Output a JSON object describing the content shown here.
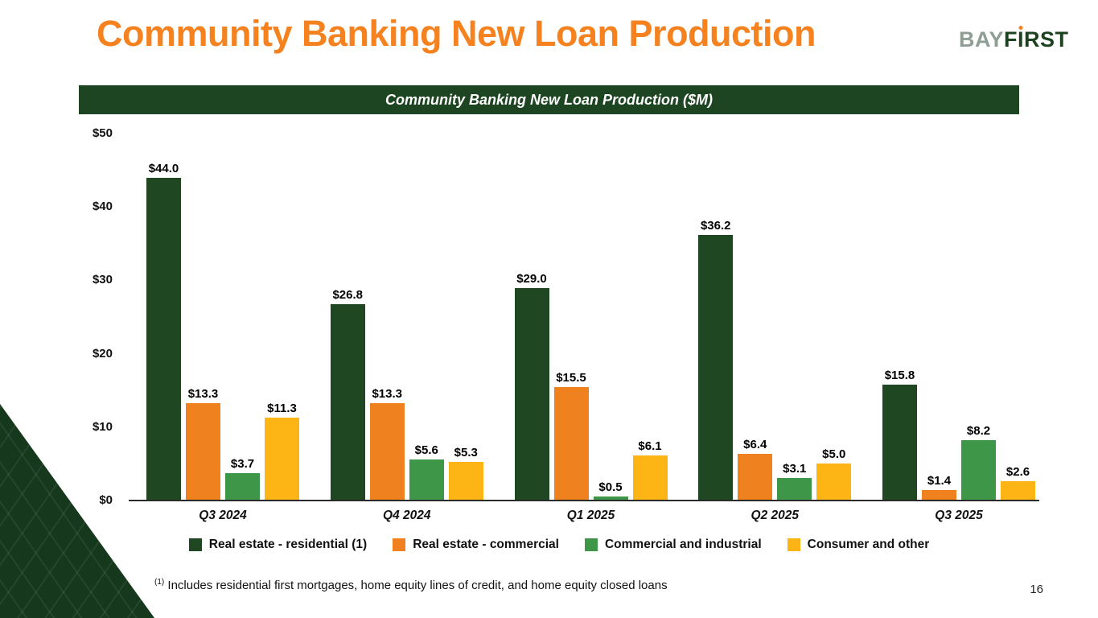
{
  "slide": {
    "title": "Community Banking New Loan Production",
    "page_number": "16",
    "footnote_marker": "(1)",
    "footnote_text": " Includes residential first mortgages, home equity lines of credit, and home equity closed loans"
  },
  "logo": {
    "bay": "BAY",
    "f": "F",
    "i": "I",
    "rst": "RST"
  },
  "chart_data": {
    "type": "bar",
    "title": "Community Banking New Loan Production ($M)",
    "categories": [
      "Q3 2024",
      "Q4 2024",
      "Q1 2025",
      "Q2 2025",
      "Q3 2025"
    ],
    "series": [
      {
        "name": "Real estate - residential (1)",
        "color": "#1E4722",
        "values": [
          44.0,
          26.8,
          29.0,
          36.2,
          15.8
        ]
      },
      {
        "name": "Real estate - commercial",
        "color": "#F0811F",
        "values": [
          13.3,
          13.3,
          15.5,
          6.4,
          1.4
        ]
      },
      {
        "name": "Commercial and industrial",
        "color": "#3E9749",
        "values": [
          3.7,
          5.6,
          0.5,
          3.1,
          8.2
        ]
      },
      {
        "name": "Consumer and other",
        "color": "#FDB515",
        "values": [
          11.3,
          5.3,
          6.1,
          5.0,
          2.6
        ]
      }
    ],
    "value_prefix": "$",
    "ylim": [
      0,
      50
    ],
    "yticks": [
      {
        "value": 50,
        "label": "$50"
      },
      {
        "value": 40,
        "label": "$40"
      },
      {
        "value": 30,
        "label": "$30"
      },
      {
        "value": 20,
        "label": "$20"
      },
      {
        "value": 10,
        "label": "$10"
      },
      {
        "value": 0,
        "label": "$0"
      }
    ],
    "grid": false,
    "legend_position": "bottom"
  },
  "colors": {
    "accent_orange": "#F5821F",
    "brand_dark_green": "#1E4522",
    "header_bar": "#1E4522"
  }
}
